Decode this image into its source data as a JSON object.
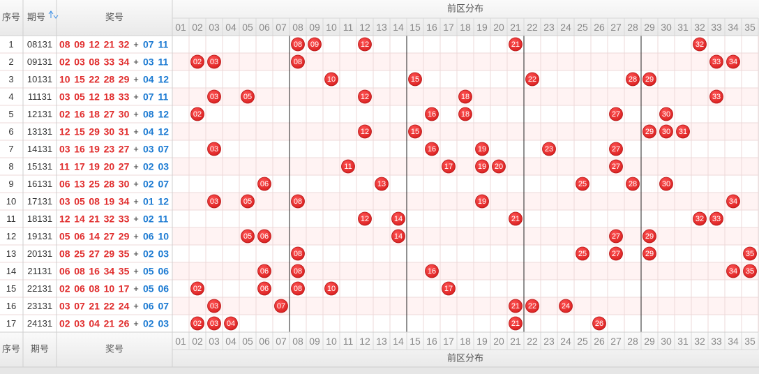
{
  "header": {
    "index": "序号",
    "issue": "期号",
    "numbers": "奖号",
    "zone": "前区分布",
    "columns": [
      "01",
      "02",
      "03",
      "04",
      "05",
      "06",
      "07",
      "08",
      "09",
      "10",
      "11",
      "12",
      "13",
      "14",
      "15",
      "16",
      "17",
      "18",
      "19",
      "20",
      "21",
      "22",
      "23",
      "24",
      "25",
      "26",
      "27",
      "28",
      "29",
      "30",
      "31",
      "32",
      "33",
      "34",
      "35"
    ]
  },
  "separator": "+",
  "rows": [
    {
      "index": 1,
      "issue": "08131",
      "front": [
        "08",
        "09",
        "12",
        "21",
        "32"
      ],
      "back": [
        "07",
        "11"
      ]
    },
    {
      "index": 2,
      "issue": "09131",
      "front": [
        "02",
        "03",
        "08",
        "33",
        "34"
      ],
      "back": [
        "03",
        "11"
      ]
    },
    {
      "index": 3,
      "issue": "10131",
      "front": [
        "10",
        "15",
        "22",
        "28",
        "29"
      ],
      "back": [
        "04",
        "12"
      ]
    },
    {
      "index": 4,
      "issue": "11131",
      "front": [
        "03",
        "05",
        "12",
        "18",
        "33"
      ],
      "back": [
        "07",
        "11"
      ]
    },
    {
      "index": 5,
      "issue": "12131",
      "front": [
        "02",
        "16",
        "18",
        "27",
        "30"
      ],
      "back": [
        "08",
        "12"
      ]
    },
    {
      "index": 6,
      "issue": "13131",
      "front": [
        "12",
        "15",
        "29",
        "30",
        "31"
      ],
      "back": [
        "04",
        "12"
      ]
    },
    {
      "index": 7,
      "issue": "14131",
      "front": [
        "03",
        "16",
        "19",
        "23",
        "27"
      ],
      "back": [
        "03",
        "07"
      ]
    },
    {
      "index": 8,
      "issue": "15131",
      "front": [
        "11",
        "17",
        "19",
        "20",
        "27"
      ],
      "back": [
        "02",
        "03"
      ]
    },
    {
      "index": 9,
      "issue": "16131",
      "front": [
        "06",
        "13",
        "25",
        "28",
        "30"
      ],
      "back": [
        "02",
        "07"
      ]
    },
    {
      "index": 10,
      "issue": "17131",
      "front": [
        "03",
        "05",
        "08",
        "19",
        "34"
      ],
      "back": [
        "01",
        "12"
      ]
    },
    {
      "index": 11,
      "issue": "18131",
      "front": [
        "12",
        "14",
        "21",
        "32",
        "33"
      ],
      "back": [
        "02",
        "11"
      ]
    },
    {
      "index": 12,
      "issue": "19131",
      "front": [
        "05",
        "06",
        "14",
        "27",
        "29"
      ],
      "back": [
        "06",
        "10"
      ]
    },
    {
      "index": 13,
      "issue": "20131",
      "front": [
        "08",
        "25",
        "27",
        "29",
        "35"
      ],
      "back": [
        "02",
        "03"
      ]
    },
    {
      "index": 14,
      "issue": "21131",
      "front": [
        "06",
        "08",
        "16",
        "34",
        "35"
      ],
      "back": [
        "05",
        "06"
      ]
    },
    {
      "index": 15,
      "issue": "22131",
      "front": [
        "02",
        "06",
        "08",
        "10",
        "17"
      ],
      "back": [
        "05",
        "06"
      ]
    },
    {
      "index": 16,
      "issue": "23131",
      "front": [
        "03",
        "07",
        "21",
        "22",
        "24"
      ],
      "back": [
        "06",
        "07"
      ]
    },
    {
      "index": 17,
      "issue": "24131",
      "front": [
        "02",
        "03",
        "04",
        "21",
        "26"
      ],
      "back": [
        "02",
        "03"
      ]
    }
  ]
}
